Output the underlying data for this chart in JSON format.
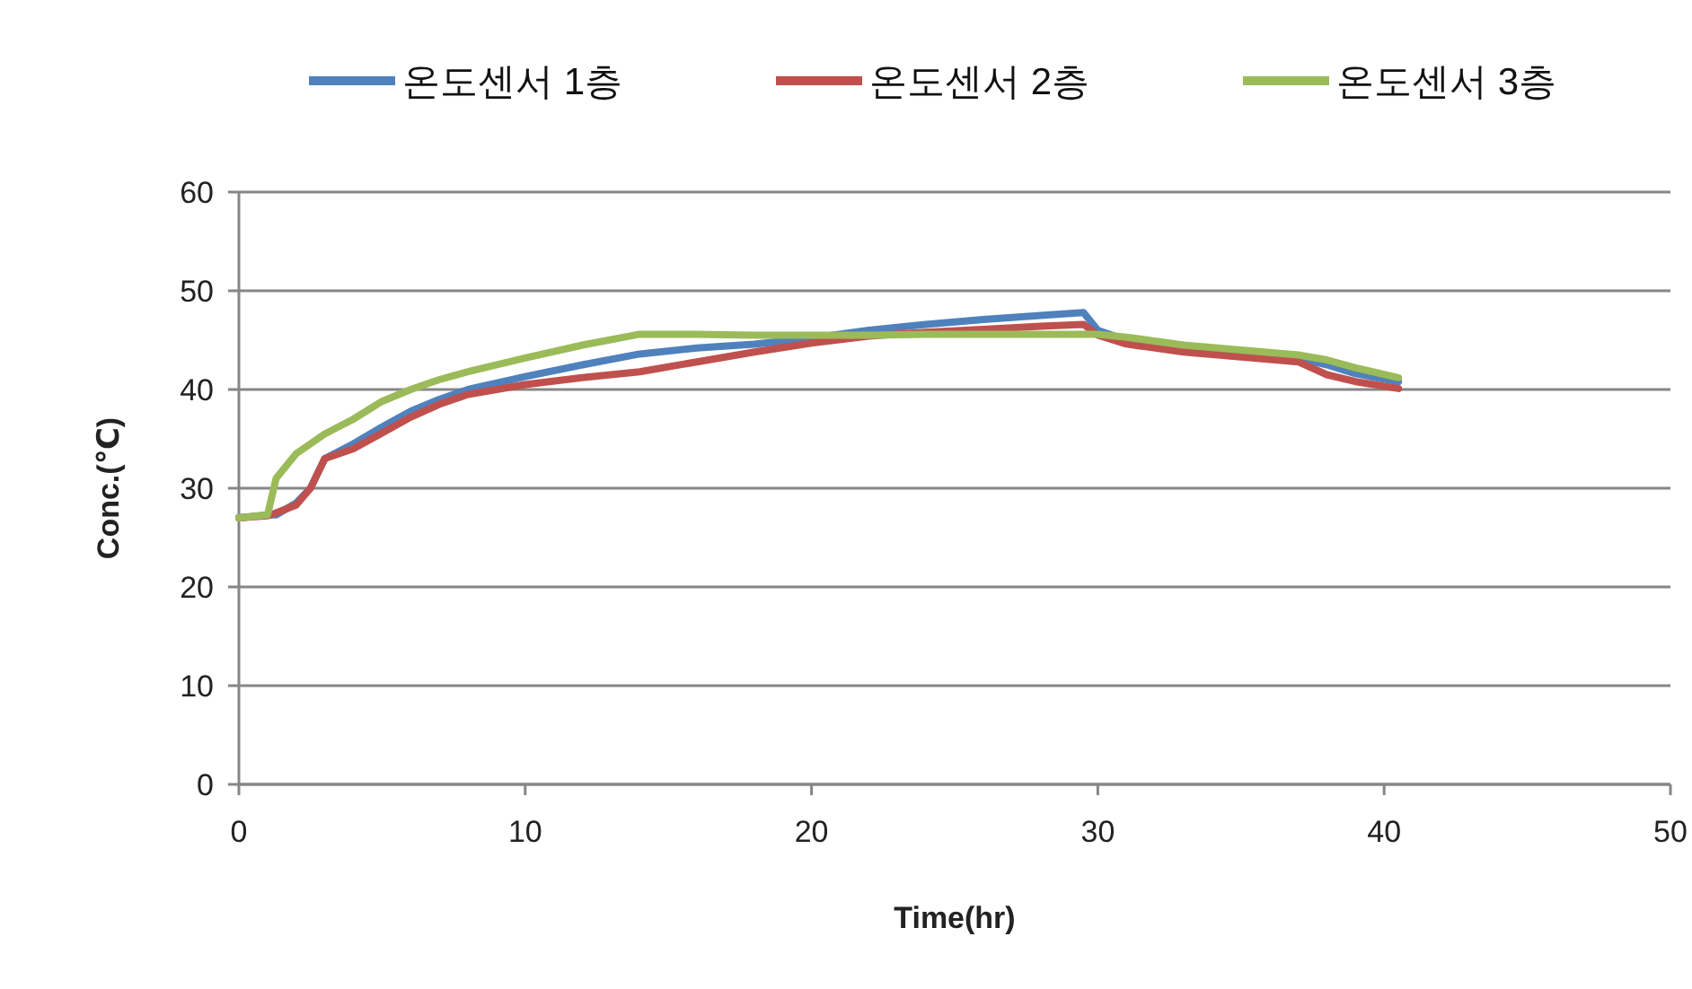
{
  "chart_data": {
    "type": "line",
    "xlabel": "Time(hr)",
    "ylabel": "Conc.(℃)",
    "x": [
      0,
      1,
      1.3,
      2,
      2.5,
      3,
      4,
      5,
      6,
      7,
      8,
      10,
      12,
      14,
      16,
      18,
      20,
      22,
      24,
      26,
      28,
      29.5,
      30,
      31,
      33,
      35,
      37,
      38,
      39,
      40.5
    ],
    "series": [
      {
        "name": "온도센서 1층",
        "color": "#4f81bd",
        "values": [
          27,
          27.3,
          27.3,
          28.5,
          30,
          33,
          34.5,
          36.2,
          37.8,
          39,
          40,
          41.3,
          42.5,
          43.6,
          44.2,
          44.6,
          45.2,
          46,
          46.6,
          47.1,
          47.5,
          47.8,
          46,
          45,
          44.3,
          43.6,
          43.2,
          42.5,
          41.6,
          40.8
        ]
      },
      {
        "name": "온도센서 2층",
        "color": "#c0504d",
        "values": [
          27,
          27.2,
          27.5,
          28.3,
          30,
          33,
          34,
          35.6,
          37.2,
          38.5,
          39.5,
          40.5,
          41.2,
          41.8,
          42.8,
          43.8,
          44.7,
          45.4,
          45.8,
          46.1,
          46.4,
          46.6,
          45.5,
          44.6,
          43.8,
          43.3,
          42.8,
          41.5,
          40.8,
          40.1
        ]
      },
      {
        "name": "온도센서 3층",
        "color": "#9bbb59",
        "values": [
          27,
          27.3,
          31,
          33.5,
          34.5,
          35.5,
          37,
          38.8,
          40,
          41,
          41.8,
          43.2,
          44.5,
          45.6,
          45.6,
          45.5,
          45.5,
          45.5,
          45.6,
          45.6,
          45.6,
          45.6,
          45.6,
          45.3,
          44.5,
          44,
          43.5,
          43,
          42.2,
          41.2
        ]
      }
    ],
    "xlim": [
      0,
      50
    ],
    "xticks": [
      0,
      10,
      20,
      30,
      40,
      50
    ],
    "ylim": [
      0,
      60
    ],
    "yticks": [
      0,
      10,
      20,
      30,
      40,
      50,
      60
    ],
    "grid": "y",
    "legend": "top right",
    "marker": "none",
    "line_style": "solid"
  }
}
